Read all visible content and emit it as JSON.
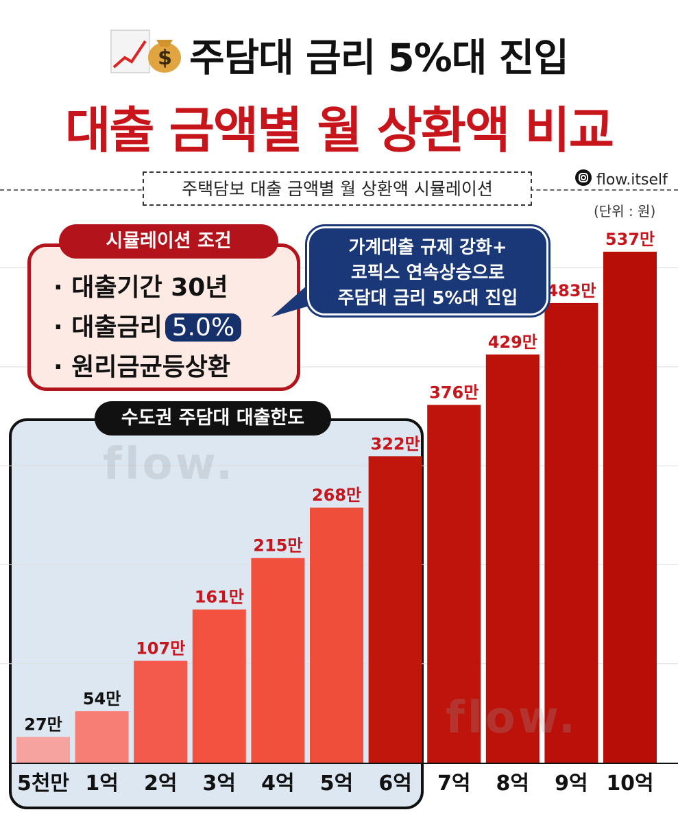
{
  "header": {
    "title_line1": "주담대 금리 5%대 진입",
    "title_line2": "대출 금액별 월 상환액 비교",
    "handle": "flow.itself"
  },
  "chart_data": {
    "type": "bar",
    "title": "주택담보 대출 금액별 월 상환액 시뮬레이션",
    "unit_label": "(단위 : 원)",
    "categories": [
      "5천만",
      "1억",
      "2억",
      "3억",
      "4억",
      "5억",
      "6억",
      "7억",
      "8억",
      "9억",
      "10억"
    ],
    "values": [
      27,
      54,
      107,
      161,
      215,
      268,
      322,
      376,
      429,
      483,
      537
    ],
    "data_labels": [
      "27만",
      "54만",
      "107만",
      "161만",
      "215만",
      "268만",
      "322만",
      "376만",
      "429만",
      "483만",
      "537만"
    ],
    "ylim": [
      0,
      580
    ],
    "grid": true,
    "colors": [
      "#f6a3a0",
      "#f67e74",
      "#f45a4c",
      "#f2523f",
      "#f0503c",
      "#ef4e3a",
      "#c0160c",
      "#be140b",
      "#bc120a",
      "#ba1009",
      "#b80e08"
    ],
    "label_colors": [
      "#111111",
      "#111111",
      "#c8141b",
      "#c8141b",
      "#c8141b",
      "#c8141b",
      "#c8141b",
      "#c8141b",
      "#c8141b",
      "#c8141b",
      "#c8141b"
    ]
  },
  "conditions": {
    "title": "시뮬레이션 조건",
    "item1": "· 대출기간 30년",
    "item2": "· 대출금리",
    "rate": "5.0%",
    "item3": "· 원리금균등상환"
  },
  "callout": {
    "line1": "가계대출 규제 강화+",
    "line2": "코픽스 연속상승으로",
    "line3": "주담대 금리 5%대 진입"
  },
  "region": {
    "title": "수도권 주담대 대출한도"
  },
  "watermark": "flow."
}
